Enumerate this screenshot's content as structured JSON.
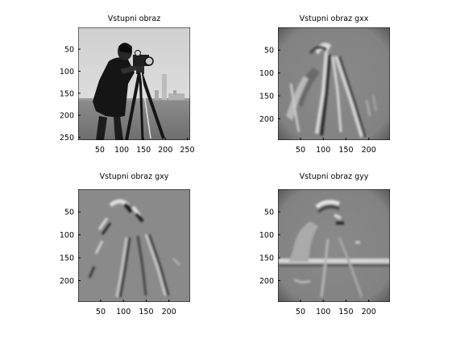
{
  "chart_data": [
    {
      "type": "heatmap",
      "title": "Vstupni obraz",
      "image_content": "grayscale photograph: cameraman with tripod camera",
      "x_ticks": [
        50,
        100,
        150,
        200,
        250
      ],
      "y_ticks": [
        50,
        100,
        150,
        200,
        250
      ],
      "xlim": [
        0.5,
        256.5
      ],
      "ylim": [
        0.5,
        256.5
      ]
    },
    {
      "type": "heatmap",
      "title": "Vstupni obraz gxx",
      "image_content": "second x-derivative filter response of the input image",
      "x_ticks": [
        50,
        100,
        150,
        200
      ],
      "y_ticks": [
        50,
        100,
        150,
        200
      ],
      "xlim": [
        0.5,
        246.5
      ],
      "ylim": [
        0.5,
        246.5
      ]
    },
    {
      "type": "heatmap",
      "title": "Vstupni obraz gxy",
      "image_content": "mixed xy-derivative filter response of the input image",
      "x_ticks": [
        50,
        100,
        150,
        200
      ],
      "y_ticks": [
        50,
        100,
        150,
        200
      ],
      "xlim": [
        0.5,
        246.5
      ],
      "ylim": [
        0.5,
        246.5
      ]
    },
    {
      "type": "heatmap",
      "title": "Vstupni obraz gyy",
      "image_content": "second y-derivative filter response of the input image",
      "x_ticks": [
        50,
        100,
        150,
        200
      ],
      "y_ticks": [
        50,
        100,
        150,
        200
      ],
      "xlim": [
        0.5,
        246.5
      ],
      "ylim": [
        0.5,
        246.5
      ]
    }
  ]
}
